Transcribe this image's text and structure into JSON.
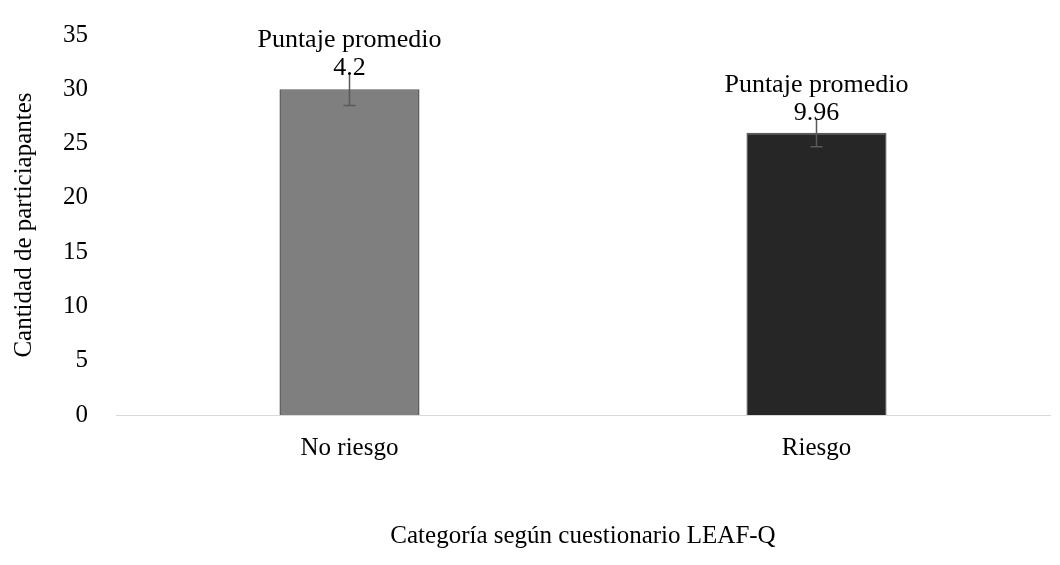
{
  "chart_data": {
    "type": "bar",
    "xlabel": "Categoría según cuestionario LEAF-Q",
    "ylabel": "Cantidad de particiapantes",
    "categories": [
      "No riesgo",
      "Riesgo"
    ],
    "values": [
      30,
      26
    ],
    "colors": [
      "#7f7f7f",
      "#262626"
    ],
    "errors": [
      1.5,
      1.3
    ],
    "ylim": [
      0,
      35
    ],
    "yticks": [
      0,
      5,
      10,
      15,
      20,
      25,
      30,
      35
    ],
    "grid": false,
    "legend": false,
    "annotations": [
      {
        "text": "Puntaje promedio 4.2",
        "x": "No riesgo",
        "y": 31.5
      },
      {
        "text": "Puntaje promedio 9.96",
        "x": "Riesgo",
        "y": 27.3
      }
    ]
  }
}
